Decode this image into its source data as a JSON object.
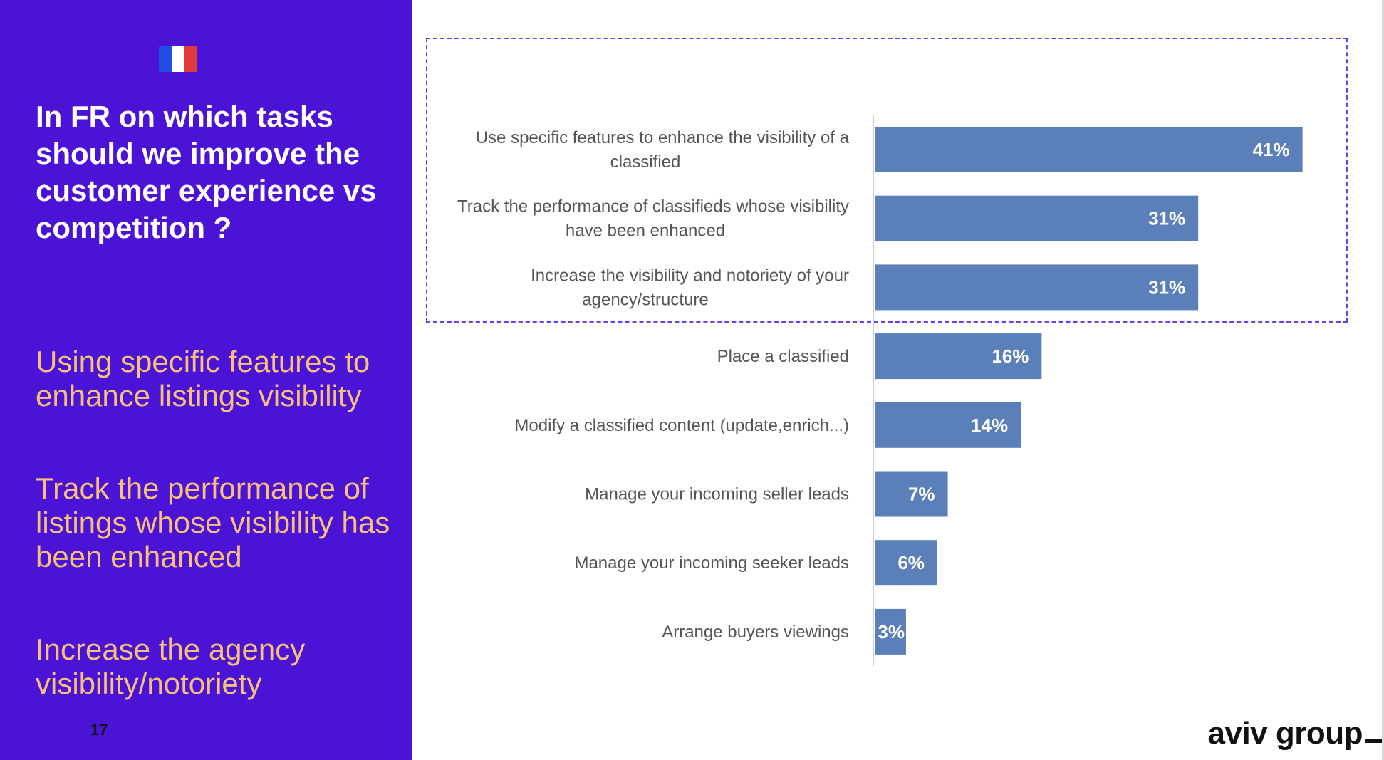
{
  "slide": {
    "headline": "In FR on which tasks should we improve the customer experience vs competition ?",
    "highlights": [
      "Using specific features to enhance listings visibility",
      "Track the performance of listings whose visibility has been enhanced",
      "Increase the agency visibility/notoriety"
    ],
    "page_number": "17",
    "logo": "aviv group",
    "flag_colors": [
      "#1f4fe0",
      "#ffffff",
      "#e03a3a"
    ]
  },
  "colors": {
    "panel": "#4a13d6",
    "highlight_text": "#f6c07a",
    "bar": "#5b7fb8",
    "dashed_box": "#6a3df0"
  },
  "chart_data": {
    "type": "bar",
    "orientation": "horizontal",
    "categories": [
      [
        "Use specific features to enhance the visibility of a",
        "classified"
      ],
      [
        "Track the performance of classifieds whose visibility",
        "have been enhanced"
      ],
      [
        "Increase the visibility and notoriety of your",
        "agency/structure"
      ],
      [
        "Place a classified"
      ],
      [
        "Modify a classified content (update,enrich...)"
      ],
      [
        "Manage your incoming seller leads"
      ],
      [
        "Manage your incoming seeker leads"
      ],
      [
        "Arrange buyers viewings"
      ]
    ],
    "values": [
      41,
      31,
      31,
      16,
      14,
      7,
      6,
      3
    ],
    "value_labels": [
      "41%",
      "31%",
      "31%",
      "16%",
      "14%",
      "7%",
      "6%",
      "3%"
    ],
    "unit": "%",
    "highlighted_rows": [
      0,
      1,
      2
    ],
    "title": "",
    "xlabel": "",
    "ylabel": ""
  }
}
